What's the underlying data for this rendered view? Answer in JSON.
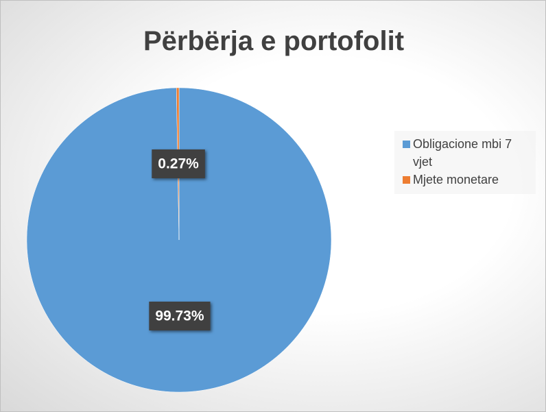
{
  "chart_data": {
    "type": "pie",
    "title": "Përbërja e portofolit",
    "categories": [
      "Obligacione mbi 7 vjet",
      "Mjete monetare"
    ],
    "values": [
      99.73,
      0.27
    ],
    "value_labels": [
      "99.73%",
      "0.27%"
    ],
    "colors": [
      "#5b9bd5",
      "#ed7d31"
    ],
    "legend": "right"
  }
}
